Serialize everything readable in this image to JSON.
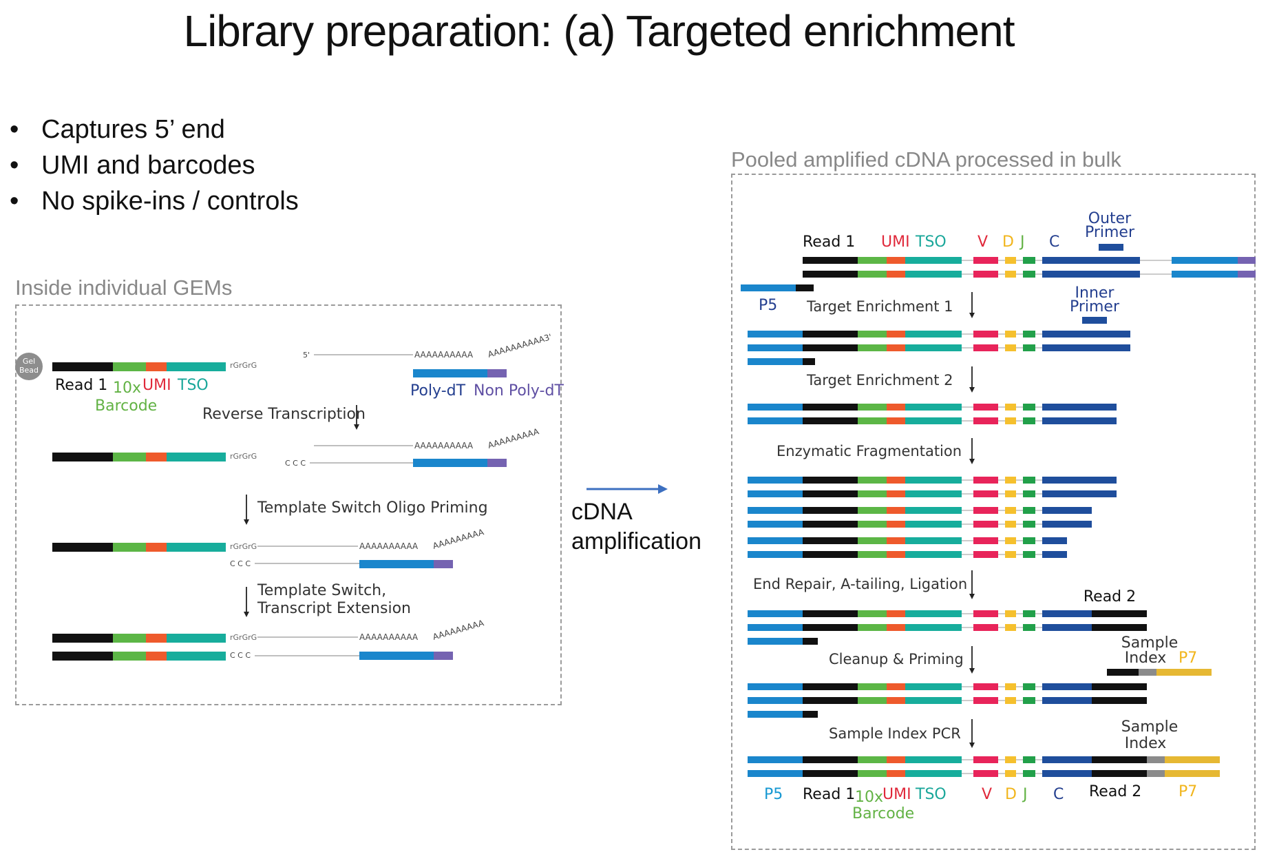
{
  "title": "Library preparation: (a) Targeted enrichment",
  "bullets": [
    "Captures 5’ end",
    "UMI and barcodes",
    "No spike-ins / controls"
  ],
  "left_panel": {
    "title": "Inside individual GEMs",
    "gel_bead": [
      "Gel",
      "Bead"
    ],
    "labels": {
      "read1": "Read 1",
      "tenx": "10x",
      "barcode": "Barcode",
      "umi": "UMI",
      "tso": "TSO",
      "polydt": "Poly-dT",
      "nonpolydt": "Non Poly-dT",
      "rgrgrg": "rGrGrG",
      "ccc": "C C C",
      "five_prime": "5'",
      "polyA": "AAAAAAAAAA",
      "polyA_tail": "AAAAAAAAAA3'",
      "polyA_tail2": "AAAAAAAAA"
    },
    "steps": {
      "rt": "Reverse Transcription",
      "tsop": "Template Switch Oligo Priming",
      "tse1": "Template Switch,",
      "tse2": "Transcript Extension"
    }
  },
  "middle": {
    "line1": "cDNA",
    "line2": "amplification"
  },
  "right_panel": {
    "title": "Pooled amplified cDNA processed in bulk",
    "top_labels": {
      "read1": "Read 1",
      "umi": "UMI",
      "tso": "TSO",
      "v": "V",
      "d": "D",
      "j": "J",
      "c": "C"
    },
    "outer_primer": [
      "Outer",
      "Primer"
    ],
    "inner_primer": [
      "Inner",
      "Primer"
    ],
    "p5": "P5",
    "steps": {
      "te1": "Target Enrichment 1",
      "te2": "Target Enrichment 2",
      "ef": "Enzymatic Fragmentation",
      "er": "End Repair, A-tailing, Ligation",
      "cp": "Cleanup & Priming",
      "si": "Sample Index PCR"
    },
    "read2": "Read 2",
    "sample_index": [
      "Sample",
      "Index"
    ],
    "p7": "P7",
    "bottom_labels": {
      "p5": "P5",
      "read1": "Read 1",
      "tenx": "10x",
      "barcode": "Barcode",
      "umi": "UMI",
      "tso": "TSO",
      "v": "V",
      "d": "D",
      "j": "J",
      "c": "C",
      "read2": "Read 2",
      "p7": "P7"
    }
  },
  "colors": {
    "black": "#111111",
    "green": "#5cb646",
    "orange": "#ee5a2c",
    "teal": "#17ad9c",
    "blue": "#1a86cc",
    "purple": "#7563b1",
    "red": "#e8245a",
    "yellow": "#f5c02e",
    "dgreen": "#22a04a",
    "navy": "#1f4e9c",
    "gray": "#8b8b8b",
    "gold": "#e6b833",
    "label_red": "#e0283a",
    "label_green": "#62b244",
    "label_teal": "#1aa79a",
    "label_navy": "#243f8f",
    "label_blue": "#1698d2",
    "label_yellow": "#f1b51c"
  }
}
